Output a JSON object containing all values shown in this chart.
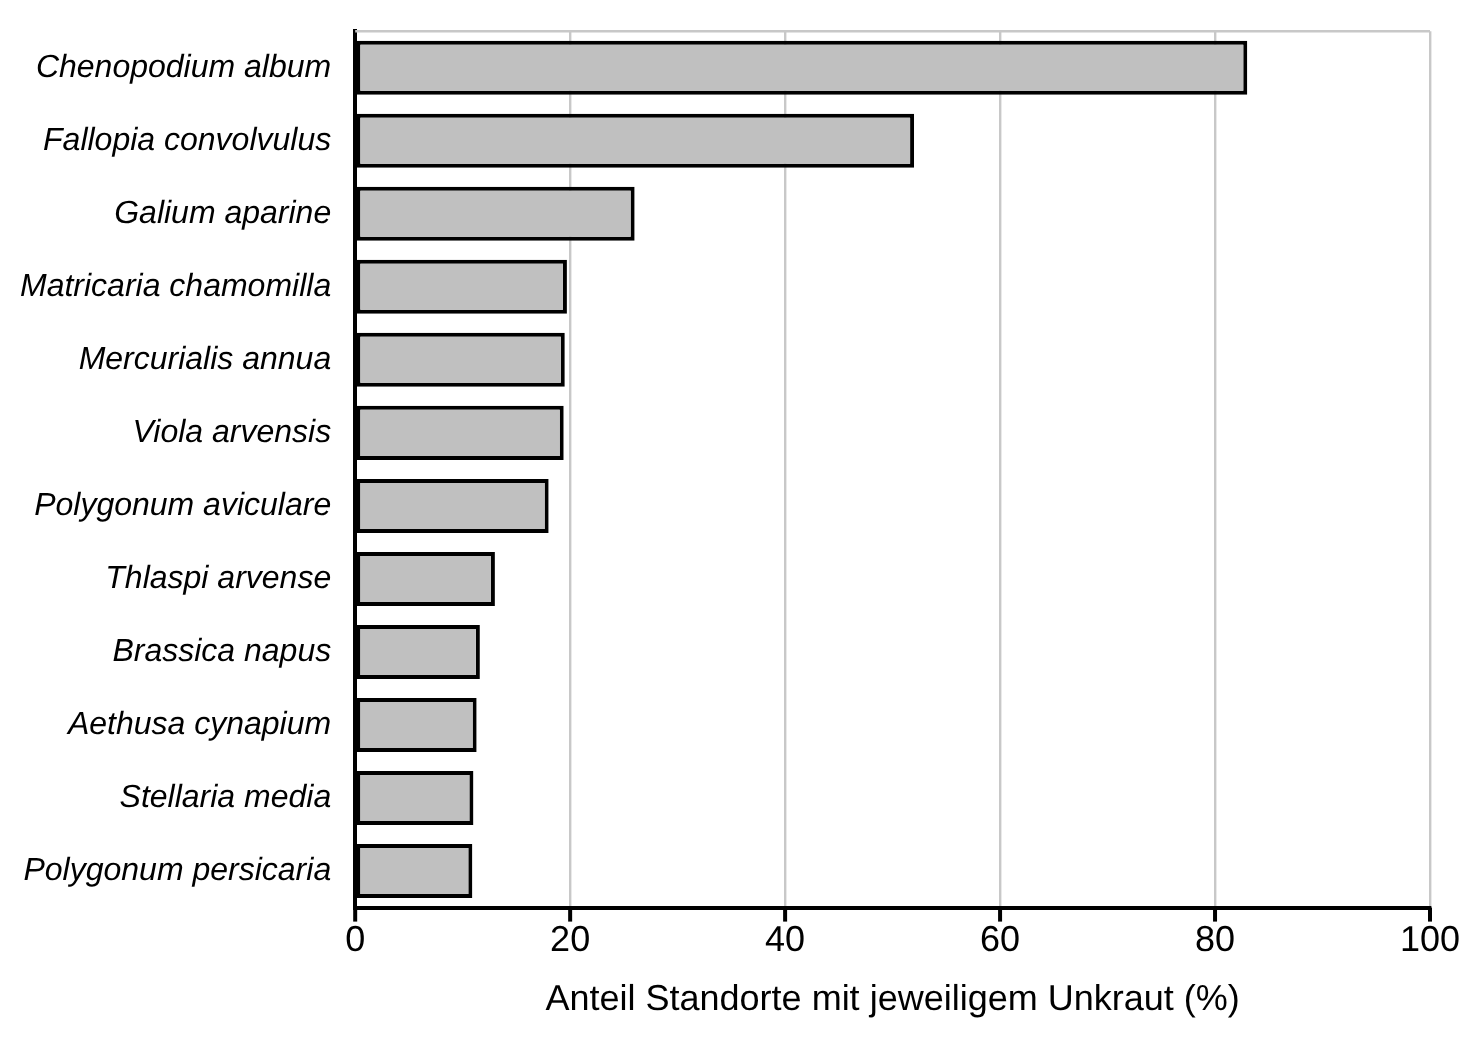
{
  "chart_data": {
    "type": "bar",
    "orientation": "horizontal",
    "xlabel": "Anteil Standorte mit jeweiligem Unkraut (%)",
    "categories": [
      "Chenopodium album",
      "Fallopia convolvulus",
      "Galium aparine",
      "Matricaria chamomilla",
      "Mercurialis annua",
      "Viola arvensis",
      "Polygonum aviculare",
      "Thlaspi arvense",
      "Brassica napus",
      "Aethusa cynapium",
      "Stellaria media",
      "Polygonum persicaria"
    ],
    "values": [
      83,
      52,
      26,
      19.7,
      19.5,
      19.4,
      18,
      13,
      11.6,
      11.3,
      11,
      10.9
    ],
    "color": "#c0c0c0",
    "xlim": [
      0,
      100
    ],
    "xticks": [
      0,
      20,
      40,
      60,
      80,
      100
    ],
    "grid": "x",
    "legend": false
  }
}
